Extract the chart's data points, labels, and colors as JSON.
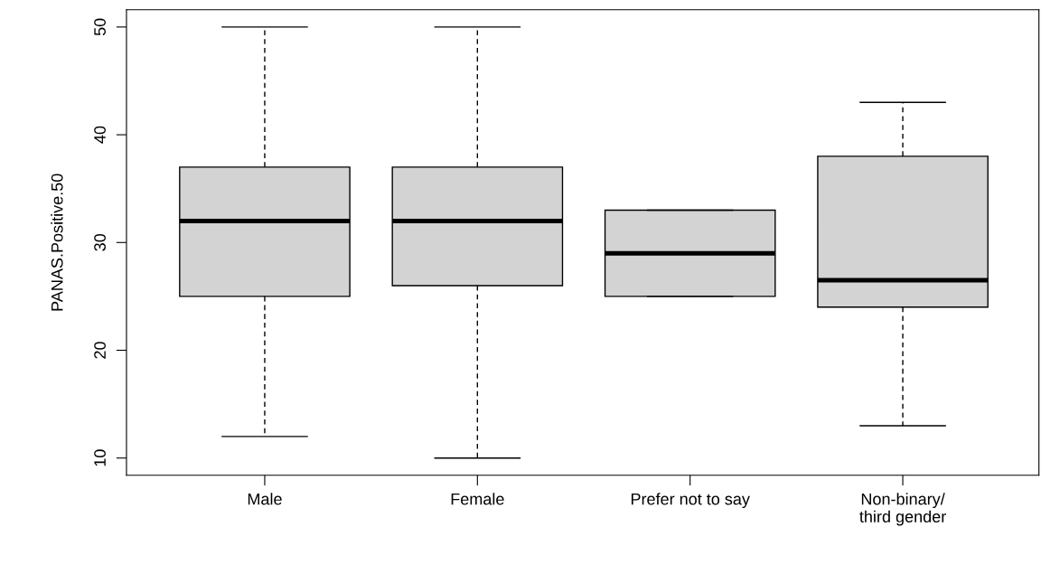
{
  "chart_data": {
    "type": "box",
    "ylabel": "PANAS.Positive.50",
    "categories": [
      "Male",
      "Female",
      "Prefer not to say",
      "Non-binary/\nthird gender"
    ],
    "boxes": [
      {
        "low": 12,
        "q1": 25,
        "median": 32,
        "q3": 37,
        "high": 50
      },
      {
        "low": 10,
        "q1": 26,
        "median": 32,
        "q3": 37,
        "high": 50
      },
      {
        "low": 25,
        "q1": 25,
        "median": 29,
        "q3": 33,
        "high": 33
      },
      {
        "low": 13,
        "q1": 24,
        "median": 26.5,
        "q3": 38,
        "high": 43
      }
    ],
    "color": "#d3d3d3",
    "line_style": "dashed",
    "ylim": [
      8.4,
      51.6
    ],
    "yticks": [
      10,
      20,
      30,
      40,
      50
    ],
    "grid": false
  }
}
